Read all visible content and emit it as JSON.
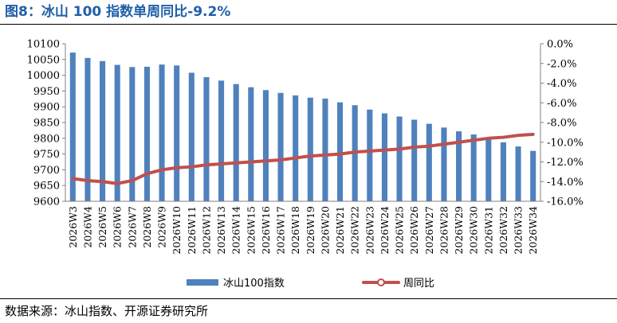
{
  "figure": {
    "title": "图8：冰山 100 指数单周同比-9.2%",
    "source": "数据来源：冰山指数、开源证券研究所"
  },
  "colors": {
    "bar": "#4f81bd",
    "line": "#c0504d",
    "title": "#1f5fa8"
  },
  "chart_data": {
    "type": "bar",
    "title": "图8：冰山 100 指数单周同比-9.2%",
    "categories": [
      "2026W3",
      "2026W4",
      "2026W5",
      "2026W6",
      "2026W7",
      "2026W8",
      "2026W9",
      "2026W10",
      "2026W11",
      "2026W12",
      "2026W13",
      "2026W14",
      "2026W15",
      "2026W16",
      "2026W17",
      "2026W18",
      "2026W19",
      "2026W20",
      "2026W21",
      "2026W22",
      "2026W23",
      "2026W24",
      "2026W25",
      "2026W26",
      "2026W27",
      "2026W28",
      "2026W29",
      "2026W30",
      "2026W31",
      "2026W32",
      "2026W33",
      "2026W34"
    ],
    "series": [
      {
        "name": "冰山100指数",
        "type": "bar",
        "axis": "left",
        "values": [
          10072,
          10055,
          10045,
          10033,
          10026,
          10027,
          10034,
          10031,
          10008,
          9994,
          9983,
          9972,
          9962,
          9953,
          9944,
          9936,
          9929,
          9926,
          9914,
          9905,
          9891,
          9879,
          9869,
          9859,
          9846,
          9834,
          9822,
          9812,
          9799,
          9787,
          9774,
          9760
        ]
      },
      {
        "name": "周同比",
        "type": "line",
        "axis": "right",
        "values": [
          -13.7,
          -13.9,
          -14.0,
          -14.2,
          -13.9,
          -13.2,
          -12.8,
          -12.6,
          -12.5,
          -12.3,
          -12.2,
          -12.1,
          -12.0,
          -11.9,
          -11.8,
          -11.6,
          -11.4,
          -11.3,
          -11.2,
          -11.0,
          -10.9,
          -10.8,
          -10.7,
          -10.5,
          -10.4,
          -10.2,
          -10.0,
          -9.8,
          -9.6,
          -9.5,
          -9.3,
          -9.2
        ]
      }
    ],
    "yleft": {
      "lim": [
        9600,
        10100
      ],
      "ticks": [
        "9600",
        "9650",
        "9700",
        "9750",
        "9800",
        "9850",
        "9900",
        "9950",
        "10000",
        "10050",
        "10100"
      ]
    },
    "yright": {
      "lim": [
        -16,
        0
      ],
      "ticks": [
        "0.0%",
        "-2.0%",
        "-4.0%",
        "-6.0%",
        "-8.0%",
        "-10.0%",
        "-12.0%",
        "-14.0%",
        "-16.0%"
      ]
    },
    "grid": false,
    "legend_position": "bottom"
  }
}
